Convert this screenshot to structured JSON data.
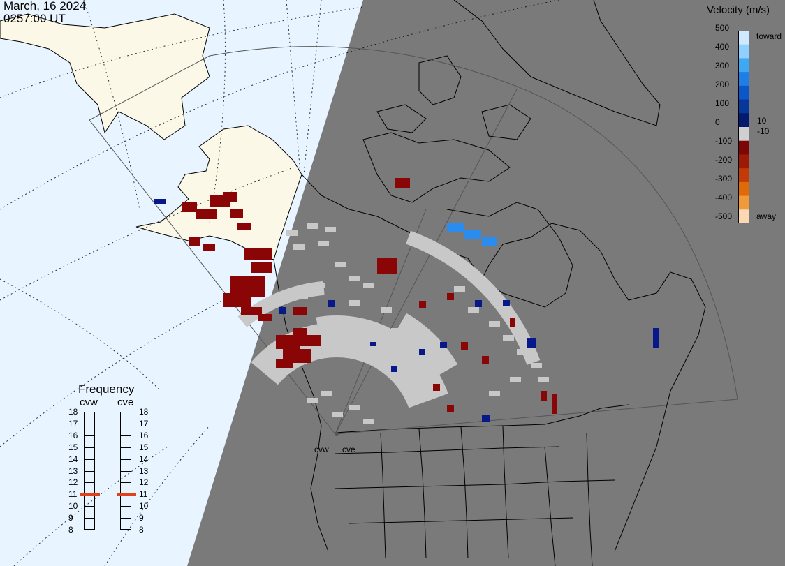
{
  "header": {
    "date": "March, 16 2024",
    "time": "0257:00 UT"
  },
  "map": {
    "colors": {
      "ocean": "#e8f4ff",
      "land_day": "#fbf8e8",
      "night": "#7a7a7a",
      "ground_scatter": "#c8c8c8",
      "coast": "#000000"
    },
    "sites": [
      {
        "id": "cvw",
        "label": "cvw"
      },
      {
        "id": "cve",
        "label": "cve"
      }
    ]
  },
  "frequency": {
    "title": "Frequency",
    "radars": [
      {
        "label": "cvw",
        "value": 11
      },
      {
        "label": "cve",
        "value": 11
      }
    ],
    "ticks": [
      "18",
      "17",
      "16",
      "15",
      "14",
      "13",
      "12",
      "11",
      "10",
      "9",
      "8"
    ]
  },
  "legend": {
    "title": "Velocity (m/s)",
    "ticks": [
      "500",
      "400",
      "300",
      "200",
      "100",
      "0",
      "-100",
      "-200",
      "-300",
      "-400",
      "-500"
    ],
    "inner": [
      "10",
      "-10"
    ],
    "toward": "toward",
    "away": "away",
    "colors": [
      "#cfeaff",
      "#8fd0ff",
      "#3fa8f5",
      "#1e7fe6",
      "#0b56c8",
      "#06379a",
      "#031a6e",
      "#d0d0d0",
      "#7d0707",
      "#9e1a07",
      "#c23a06",
      "#e06a08",
      "#f29a3a",
      "#fcd7b4"
    ]
  }
}
